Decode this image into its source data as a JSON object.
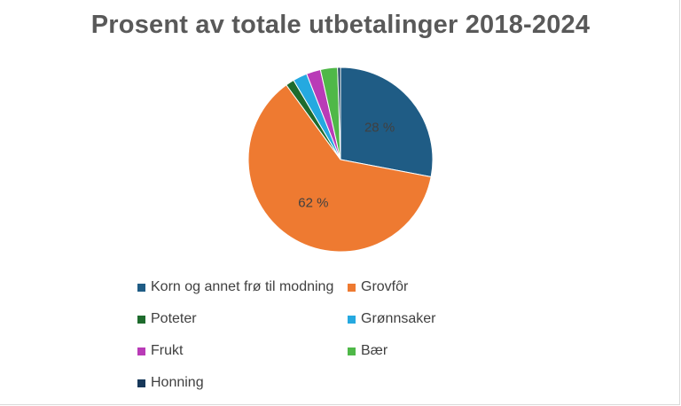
{
  "chart_data": {
    "type": "pie",
    "title": "Prosent av totale utbetalinger 2018-2024",
    "categories": [
      "Korn og annet frø til modning",
      "Grovfôr",
      "Poteter",
      "Grønnsaker",
      "Frukt",
      "Bær",
      "Honning"
    ],
    "values": [
      28,
      62,
      1.5,
      2.5,
      2.5,
      3,
      0.5
    ],
    "colors": [
      "#1f5c85",
      "#ee7a31",
      "#1e6b2d",
      "#25a9e0",
      "#b93bb7",
      "#4fb848",
      "#17385a"
    ],
    "data_labels": [
      "28 %",
      "62 %",
      "",
      "",
      "",
      "",
      ""
    ],
    "legend_position": "bottom"
  }
}
